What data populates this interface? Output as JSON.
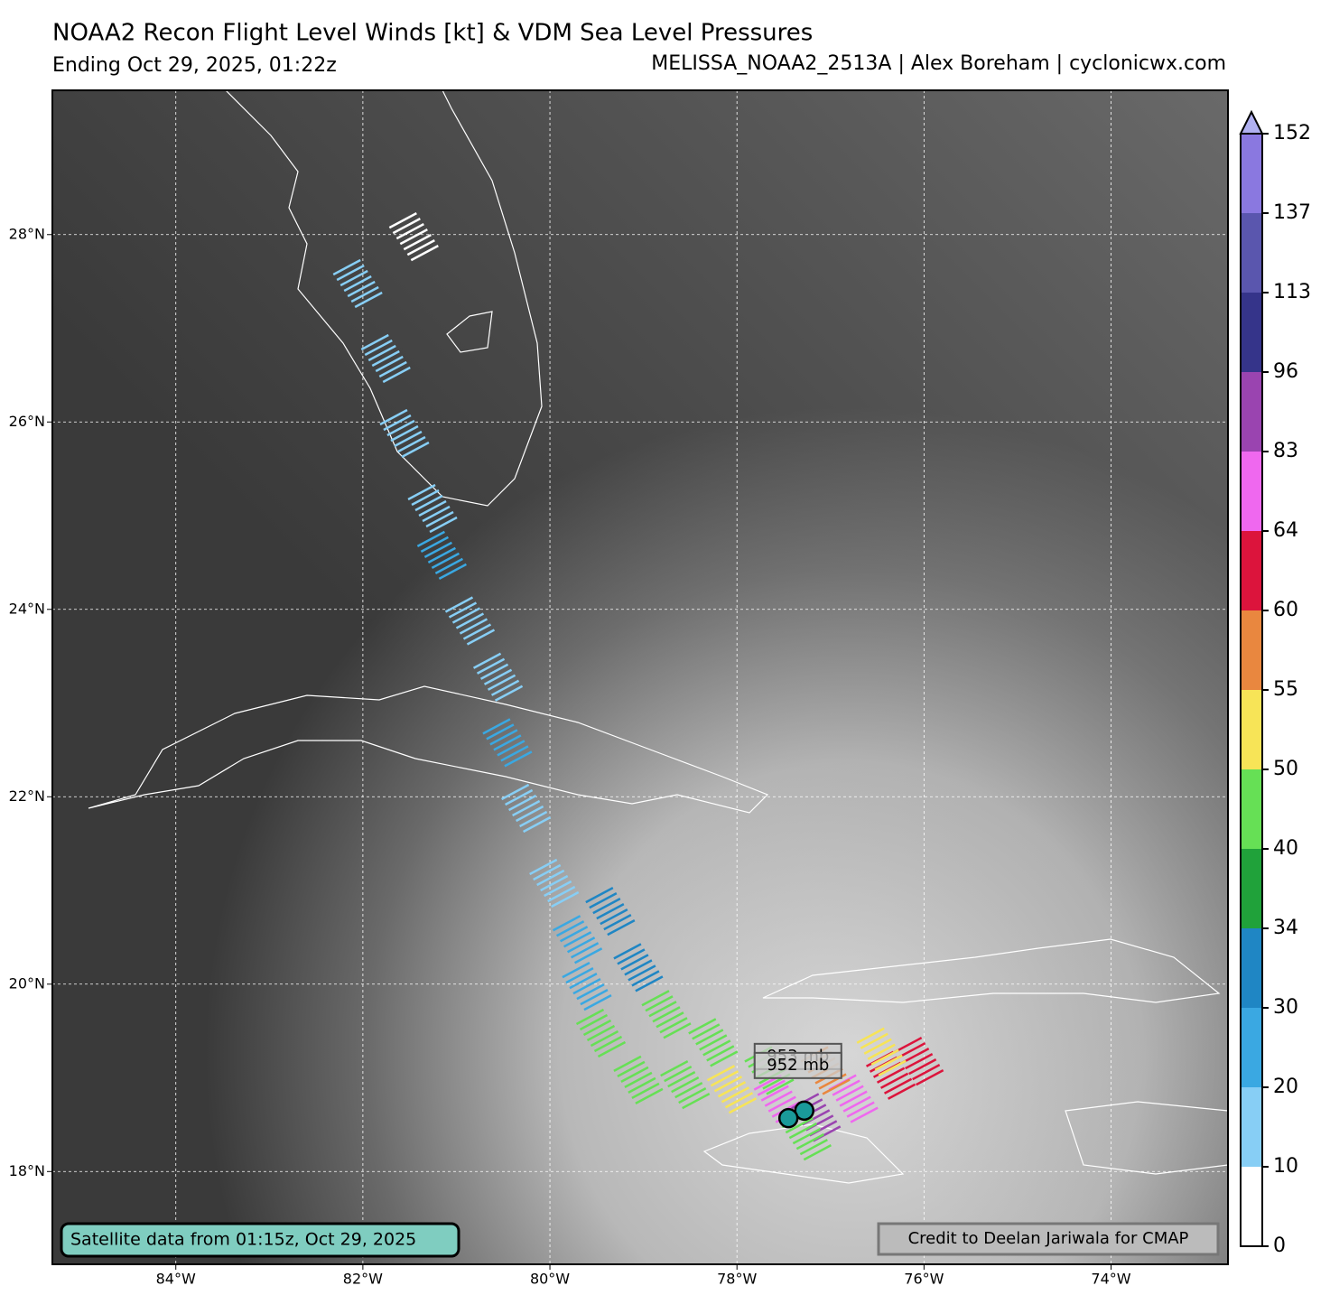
{
  "header": {
    "title": "NOAA2 Recon Flight Level Winds [kt] & VDM Sea Level Pressures",
    "subtitle_left": "Ending Oct 29, 2025, 01:22z",
    "subtitle_right": "MELISSA_NOAA2_2513A | Alex Boreham | cyclonicwx.com"
  },
  "map": {
    "xlim": [
      -85.32,
      -72.75
    ],
    "ylim": [
      17.01,
      29.54
    ],
    "xticks": [
      {
        "value": -84,
        "label": "84°W"
      },
      {
        "value": -82,
        "label": "82°W"
      },
      {
        "value": -80,
        "label": "80°W"
      },
      {
        "value": -78,
        "label": "78°W"
      },
      {
        "value": -76,
        "label": "76°W"
      },
      {
        "value": -74,
        "label": "74°W"
      }
    ],
    "yticks": [
      {
        "value": 18,
        "label": "18°N"
      },
      {
        "value": 20,
        "label": "20°N"
      },
      {
        "value": 22,
        "label": "22°N"
      },
      {
        "value": 24,
        "label": "24°N"
      },
      {
        "value": 26,
        "label": "26°N"
      },
      {
        "value": 28,
        "label": "28°N"
      }
    ],
    "grid": true,
    "track": [
      {
        "lon": -81.6,
        "lat": 27.9,
        "wind": 8
      },
      {
        "lon": -82.2,
        "lat": 27.4,
        "wind": 15
      },
      {
        "lon": -81.9,
        "lat": 26.6,
        "wind": 15
      },
      {
        "lon": -81.7,
        "lat": 25.8,
        "wind": 15
      },
      {
        "lon": -81.4,
        "lat": 25.0,
        "wind": 15
      },
      {
        "lon": -81.3,
        "lat": 24.5,
        "wind": 22
      },
      {
        "lon": -81.0,
        "lat": 23.8,
        "wind": 15
      },
      {
        "lon": -80.7,
        "lat": 23.2,
        "wind": 15
      },
      {
        "lon": -80.6,
        "lat": 22.5,
        "wind": 22
      },
      {
        "lon": -80.4,
        "lat": 21.8,
        "wind": 15
      },
      {
        "lon": -80.1,
        "lat": 21.0,
        "wind": 15
      },
      {
        "lon": -79.85,
        "lat": 20.4,
        "wind": 22
      },
      {
        "lon": -79.75,
        "lat": 19.9,
        "wind": 25
      },
      {
        "lon": -79.6,
        "lat": 19.4,
        "wind": 42
      },
      {
        "lon": -79.2,
        "lat": 18.9,
        "wind": 45
      },
      {
        "lon": -78.7,
        "lat": 18.85,
        "wind": 45
      },
      {
        "lon": -78.2,
        "lat": 18.8,
        "wind": 50
      },
      {
        "lon": -77.7,
        "lat": 18.7,
        "wind": 70
      },
      {
        "lon": -77.3,
        "lat": 18.5,
        "wind": 85
      },
      {
        "lon": -76.9,
        "lat": 18.7,
        "wind": 70
      },
      {
        "lon": -76.5,
        "lat": 18.95,
        "wind": 62
      },
      {
        "lon": -76.2,
        "lat": 19.1,
        "wind": 62
      },
      {
        "lon": -76.6,
        "lat": 19.2,
        "wind": 52
      },
      {
        "lon": -77.2,
        "lat": 19.0,
        "wind": 56
      },
      {
        "lon": -77.8,
        "lat": 19.0,
        "wind": 45
      },
      {
        "lon": -78.4,
        "lat": 19.3,
        "wind": 42
      },
      {
        "lon": -78.9,
        "lat": 19.6,
        "wind": 42
      },
      {
        "lon": -79.2,
        "lat": 20.1,
        "wind": 32
      },
      {
        "lon": -79.5,
        "lat": 20.7,
        "wind": 32
      },
      {
        "lon": -77.4,
        "lat": 18.3,
        "wind": 42
      }
    ],
    "vdm": [
      {
        "lon": -77.28,
        "lat": 18.65,
        "label": "953 mb"
      },
      {
        "lon": -77.45,
        "lat": 18.57,
        "label": "952 mb"
      }
    ],
    "satellite_note": "Satellite data from 01:15z, Oct 29, 2025",
    "credit": "Credit to Deelan Jariwala for CMAP"
  },
  "colorbar": {
    "levels": [
      0,
      10,
      20,
      30,
      34,
      40,
      50,
      55,
      60,
      64,
      83,
      96,
      113,
      137,
      152
    ],
    "colors": [
      "#ffffff",
      "#87cef5",
      "#3aa8e2",
      "#1f86c4",
      "#20a23a",
      "#66e055",
      "#f7e457",
      "#e9873f",
      "#dc143c",
      "#ef68ef",
      "#9a44b0",
      "#35348a",
      "#5a56ae",
      "#8a78e0"
    ],
    "extend_color": "#b0b0f0"
  }
}
